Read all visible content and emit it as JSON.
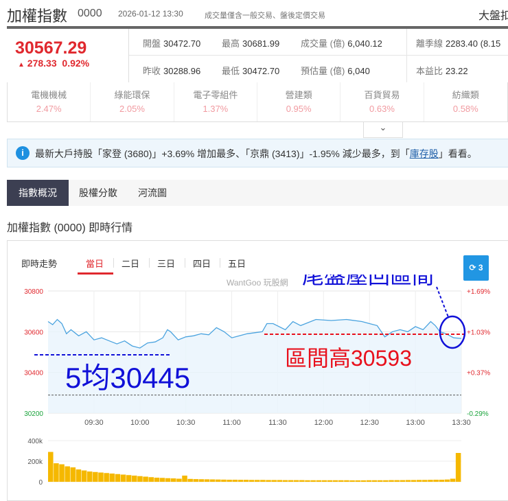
{
  "header": {
    "title": "加權指數",
    "code": "0000",
    "datetime": "2026-01-12 13:30",
    "note": "成交量僅含一般交易、盤後定價交易",
    "right_clipped": "大盤扣"
  },
  "quote": {
    "price": "30567.29",
    "change_arrow": "▲",
    "change": "278.33",
    "change_pct": "0.92%",
    "color_up": "#e0282e"
  },
  "stats": [
    {
      "label": "開盤",
      "value": "30472.70"
    },
    {
      "label": "最高",
      "value": "30681.99"
    },
    {
      "label": "成交量 (億)",
      "value": "6,040.12"
    },
    {
      "label": "離季線",
      "value": "2283.40 (8.15"
    },
    {
      "label": "昨收",
      "value": "30288.96"
    },
    {
      "label": "最低",
      "value": "30472.70"
    },
    {
      "label": "預估量 (億)",
      "value": "6,040"
    },
    {
      "label": "本益比",
      "value": "23.22"
    }
  ],
  "sectors": [
    {
      "name": "電機機械",
      "pct": "2.47%"
    },
    {
      "name": "綠能環保",
      "pct": "2.05%"
    },
    {
      "name": "電子零組件",
      "pct": "1.37%"
    },
    {
      "name": "營建類",
      "pct": "0.95%"
    },
    {
      "name": "百貨貿易",
      "pct": "0.63%"
    },
    {
      "name": "紡織類",
      "pct": "0.58%"
    }
  ],
  "expand_icon": "chevron-down",
  "banner": {
    "icon": "info-icon",
    "text_before": "最新大戶持股「家登 (3680)」+3.69% 增加最多、「京鼎 (3413)」-1.95% 減少最多，到「",
    "link": "庫存股",
    "text_after": "」看看。"
  },
  "tabs": [
    "指數概況",
    "股權分散",
    "河流圖"
  ],
  "section_title": "加權指數 (0000) 即時行情",
  "chart_header": {
    "label": "即時走勢",
    "ranges": [
      "當日",
      "二日",
      "三日",
      "四日",
      "五日"
    ],
    "active": "當日",
    "refresh_label": "3",
    "refresh_icon": "sync-icon",
    "watermark": "WantGoo 玩股網"
  },
  "chart_data": {
    "type": "line",
    "prev_close": 30288.96,
    "ylim": [
      30200,
      30800
    ],
    "y_ticks": [
      "30800",
      "30600",
      "30400",
      "30200"
    ],
    "y_right_ticks": [
      "+1.69%",
      "+1.03%",
      "+0.37%",
      "-0.29%"
    ],
    "x_ticks": [
      "09:30",
      "10:00",
      "10:30",
      "11:00",
      "11:30",
      "12:00",
      "12:30",
      "13:00",
      "13:30"
    ],
    "series": {
      "x": [
        "09:00",
        "09:03",
        "09:06",
        "09:09",
        "09:12",
        "09:15",
        "09:20",
        "09:25",
        "09:30",
        "09:35",
        "09:40",
        "09:45",
        "09:50",
        "09:55",
        "10:00",
        "10:05",
        "10:10",
        "10:15",
        "10:18",
        "10:20",
        "10:25",
        "10:30",
        "10:35",
        "10:40",
        "10:45",
        "10:50",
        "10:55",
        "11:00",
        "11:05",
        "11:10",
        "11:15",
        "11:20",
        "11:23",
        "11:27",
        "11:35",
        "11:40",
        "11:45",
        "11:55",
        "12:05",
        "12:15",
        "12:25",
        "12:30",
        "12:35",
        "12:40",
        "12:45",
        "12:50",
        "12:55",
        "13:00",
        "13:05",
        "13:10",
        "13:13",
        "13:16",
        "13:20",
        "13:25",
        "13:30"
      ],
      "values": [
        30650,
        30635,
        30660,
        30640,
        30590,
        30610,
        30580,
        30600,
        30560,
        30570,
        30555,
        30540,
        30555,
        30530,
        30520,
        30545,
        30550,
        30570,
        30610,
        30600,
        30560,
        30575,
        30580,
        30590,
        30585,
        30620,
        30600,
        30570,
        30580,
        30590,
        30595,
        30600,
        30640,
        30640,
        30610,
        30650,
        30630,
        30660,
        30655,
        30660,
        30650,
        30640,
        30630,
        30575,
        30600,
        30610,
        30600,
        30625,
        30610,
        30650,
        30630,
        30600,
        30590,
        30570,
        30567
      ]
    },
    "volume": {
      "ylim": [
        0,
        400000
      ],
      "y_ticks": [
        "400k",
        "200k",
        "0"
      ],
      "color": "#f5b800",
      "values": [
        290000,
        180000,
        170000,
        150000,
        140000,
        120000,
        110000,
        100000,
        95000,
        90000,
        85000,
        80000,
        75000,
        70000,
        65000,
        60000,
        55000,
        50000,
        45000,
        40000,
        38000,
        35000,
        33000,
        30000,
        60000,
        28000,
        26000,
        25000,
        24000,
        23000,
        22000,
        21000,
        20000,
        20000,
        19000,
        19000,
        18000,
        18000,
        18000,
        17000,
        17000,
        17000,
        16000,
        16000,
        16000,
        16000,
        15000,
        15000,
        15000,
        15000,
        15000,
        15000,
        15000,
        15000,
        14000,
        14000,
        14000,
        15000,
        15000,
        15000,
        15000,
        16000,
        16000,
        16000,
        17000,
        17000,
        18000,
        18000,
        19000,
        20000,
        20000,
        22000,
        30000,
        280000
      ]
    }
  },
  "annotations": {
    "tail_pullback": "尾盤壓回區間",
    "range_high": "區間高30593",
    "ma5": "5均30445",
    "blue": "#1010d8",
    "red": "#e8101c"
  }
}
